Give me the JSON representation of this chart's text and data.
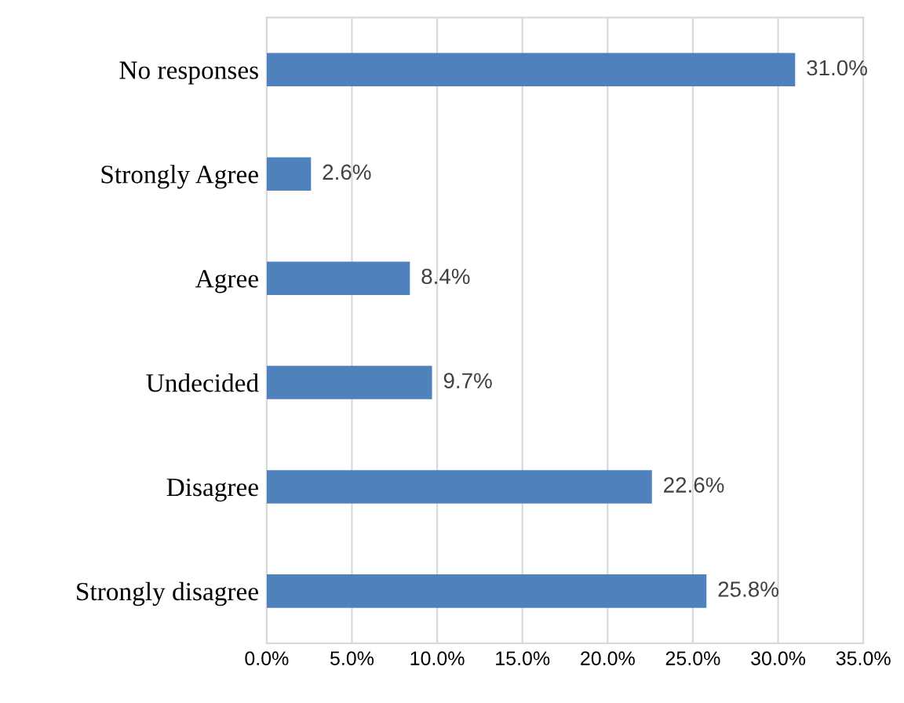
{
  "chart_data": {
    "type": "bar",
    "orientation": "horizontal",
    "categories": [
      "No responses",
      "Strongly Agree",
      "Agree",
      "Undecided",
      "Disagree",
      "Strongly disagree"
    ],
    "values": [
      31.0,
      2.6,
      8.4,
      9.7,
      22.6,
      25.8
    ],
    "value_labels": [
      "31.0%",
      "2.6%",
      "8.4%",
      "9.7%",
      "22.6%",
      "25.8%"
    ],
    "color": "#4f81bd",
    "xlim": [
      0,
      35
    ],
    "xticks": [
      {
        "value": 0,
        "label": "0.0%"
      },
      {
        "value": 5,
        "label": "5.0%"
      },
      {
        "value": 10,
        "label": "10.0%"
      },
      {
        "value": 15,
        "label": "15.0%"
      },
      {
        "value": 20,
        "label": "20.0%"
      },
      {
        "value": 25,
        "label": "25.0%"
      },
      {
        "value": 30,
        "label": "30.0%"
      },
      {
        "value": 35,
        "label": "35.0%"
      }
    ],
    "grid": "x"
  }
}
